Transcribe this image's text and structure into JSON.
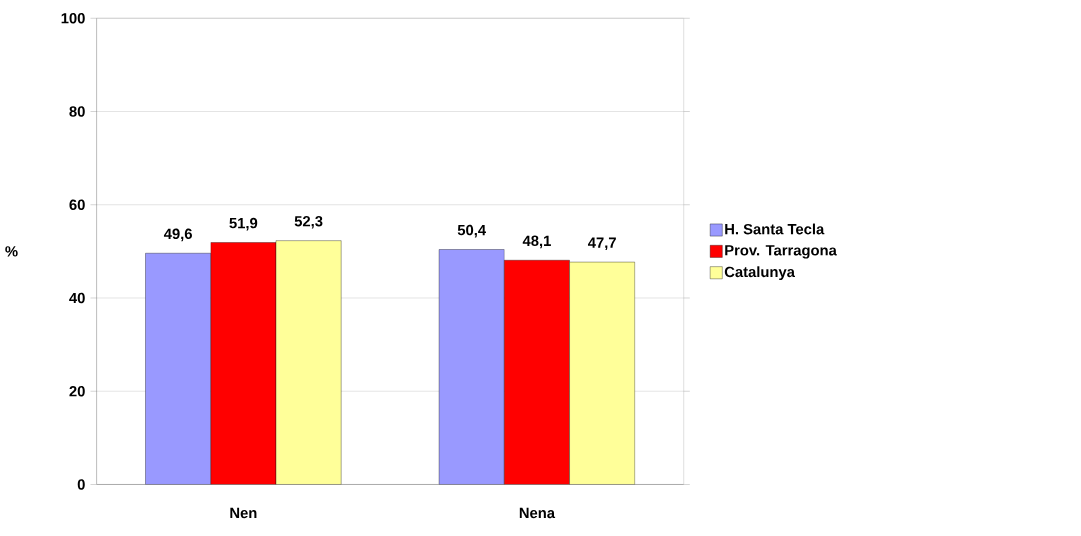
{
  "chart_data": {
    "type": "bar",
    "ylabel": "%",
    "categories": [
      "Nen",
      "Nena"
    ],
    "series": [
      {
        "name": "H. Santa Tecla",
        "color": "#9999ff",
        "values": [
          49.6,
          50.4
        ],
        "value_labels": [
          "49,6",
          "50,4"
        ]
      },
      {
        "name": "Prov. Tarragona",
        "color": "#ff0000",
        "values": [
          51.9,
          48.1
        ],
        "value_labels": [
          "51,9",
          "48,1"
        ]
      },
      {
        "name": "Catalunya",
        "color": "#ffff99",
        "values": [
          52.3,
          47.7
        ],
        "value_labels": [
          "52,3",
          "47,7"
        ]
      }
    ],
    "ylim": [
      0,
      100
    ],
    "yticks": [
      0,
      20,
      40,
      60,
      80,
      100
    ],
    "grid": "y",
    "legend": "right"
  }
}
